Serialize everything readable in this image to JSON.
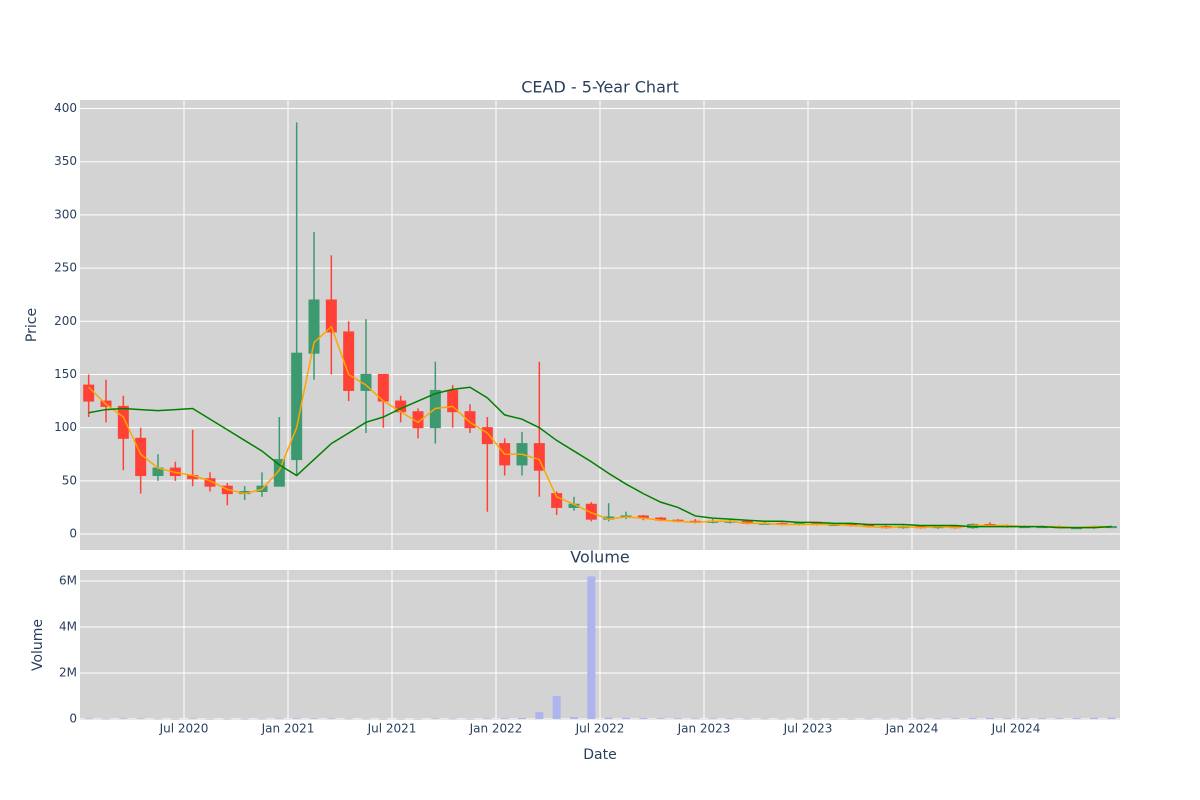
{
  "chart_data": [
    {
      "type": "candlestick",
      "title": "CEAD - 5-Year Chart",
      "y_label": "Price",
      "x": [
        "2020-01",
        "2020-02",
        "2020-03",
        "2020-04",
        "2020-05",
        "2020-06",
        "2020-07",
        "2020-08",
        "2020-09",
        "2020-10",
        "2020-11",
        "2020-12",
        "2021-01",
        "2021-02",
        "2021-03",
        "2021-04",
        "2021-05",
        "2021-06",
        "2021-07",
        "2021-08",
        "2021-09",
        "2021-10",
        "2021-11",
        "2021-12",
        "2022-01",
        "2022-02",
        "2022-03",
        "2022-04",
        "2022-05",
        "2022-06",
        "2022-07",
        "2022-08",
        "2022-09",
        "2022-10",
        "2022-11",
        "2022-12",
        "2023-01",
        "2023-02",
        "2023-03",
        "2023-04",
        "2023-05",
        "2023-06",
        "2023-07",
        "2023-08",
        "2023-09",
        "2023-10",
        "2023-11",
        "2023-12",
        "2024-01",
        "2024-02",
        "2024-03",
        "2024-04",
        "2024-05",
        "2024-06",
        "2024-07",
        "2024-08",
        "2024-09",
        "2024-10",
        "2024-11",
        "2024-12"
      ],
      "open": [
        140,
        125,
        120,
        90,
        55,
        62,
        55,
        52,
        45,
        38,
        40,
        45,
        70,
        170,
        220,
        190,
        135,
        150,
        125,
        115,
        100,
        135,
        115,
        100,
        85,
        65,
        85,
        38,
        25,
        28,
        14,
        16,
        17,
        15,
        13,
        12,
        11,
        12,
        12,
        10,
        10,
        9,
        10,
        9,
        9,
        8,
        7,
        6,
        7,
        6,
        7,
        6,
        9,
        8,
        7,
        7,
        7,
        6,
        6,
        7
      ],
      "high": [
        150,
        145,
        130,
        100,
        75,
        68,
        98,
        58,
        48,
        45,
        58,
        110,
        387,
        284,
        262,
        200,
        202,
        150,
        130,
        118,
        162,
        140,
        122,
        110,
        90,
        96,
        162,
        40,
        35,
        30,
        29,
        21,
        18,
        16,
        14,
        14,
        14,
        14,
        13,
        12,
        11,
        11,
        11,
        10,
        10,
        9,
        8,
        8,
        8,
        8,
        8,
        10,
        11,
        9,
        8,
        8,
        8,
        7,
        8,
        8
      ],
      "low": [
        110,
        105,
        60,
        38,
        50,
        50,
        45,
        40,
        27,
        32,
        35,
        45,
        55,
        145,
        150,
        125,
        95,
        100,
        105,
        90,
        85,
        100,
        95,
        21,
        55,
        55,
        35,
        18,
        22,
        12,
        12,
        14,
        13,
        12,
        11,
        10,
        10,
        10,
        9,
        9,
        8,
        8,
        8,
        8,
        7,
        6,
        5,
        5,
        5,
        5,
        5,
        5,
        7,
        6,
        6,
        6,
        6,
        5,
        5,
        6
      ],
      "close": [
        125,
        120,
        90,
        55,
        62,
        55,
        52,
        45,
        38,
        40,
        45,
        70,
        170,
        220,
        190,
        135,
        150,
        125,
        115,
        100,
        135,
        115,
        100,
        85,
        65,
        85,
        60,
        25,
        28,
        14,
        16,
        17,
        15,
        13,
        12,
        11,
        12,
        12,
        10,
        10,
        9,
        10,
        9,
        9,
        8,
        7,
        6,
        7,
        6,
        7,
        6,
        9,
        8,
        7,
        7,
        7,
        6,
        6,
        7,
        7
      ],
      "increasing_color": "#3d9970",
      "decreasing_color": "#ff4136",
      "series": [
        {
          "color": "orange",
          "values": [
            138,
            122,
            110,
            75,
            62,
            58,
            55,
            50,
            42,
            38,
            42,
            60,
            100,
            180,
            195,
            150,
            140,
            125,
            115,
            105,
            118,
            120,
            105,
            95,
            75,
            75,
            70,
            35,
            28,
            20,
            14,
            16,
            15,
            13,
            12,
            11,
            12,
            12,
            10,
            10,
            9,
            9,
            9,
            9,
            8,
            7,
            6,
            7,
            6,
            7,
            6,
            8,
            8,
            8,
            7,
            7,
            7,
            6,
            7,
            7
          ]
        },
        {
          "color": "green",
          "values": [
            114,
            117,
            118,
            117,
            116,
            117,
            118,
            108,
            98,
            88,
            78,
            65,
            55,
            70,
            85,
            95,
            105,
            110,
            118,
            125,
            132,
            136,
            138,
            128,
            112,
            108,
            100,
            88,
            78,
            68,
            57,
            47,
            38,
            30,
            25,
            17,
            15,
            14,
            13,
            12,
            12,
            11,
            11,
            10,
            10,
            9,
            9,
            9,
            8,
            8,
            8,
            7,
            7,
            7,
            7,
            7,
            6,
            6,
            6,
            7
          ]
        }
      ],
      "xlim": [
        "2020-01",
        "2025-01"
      ],
      "ylim": [
        -15,
        408
      ],
      "yticks": [
        0,
        50,
        100,
        150,
        200,
        250,
        300,
        350,
        400
      ],
      "grid": true
    },
    {
      "type": "bar",
      "title": "Volume",
      "y_label": "Volume",
      "x_label": "Date",
      "x": [
        "2020-01",
        "2020-02",
        "2020-03",
        "2020-04",
        "2020-05",
        "2020-06",
        "2020-07",
        "2020-08",
        "2020-09",
        "2020-10",
        "2020-11",
        "2020-12",
        "2021-01",
        "2021-02",
        "2021-03",
        "2021-04",
        "2021-05",
        "2021-06",
        "2021-07",
        "2021-08",
        "2021-09",
        "2021-10",
        "2021-11",
        "2021-12",
        "2022-01",
        "2022-02",
        "2022-03",
        "2022-04",
        "2022-05",
        "2022-06",
        "2022-07",
        "2022-08",
        "2022-09",
        "2022-10",
        "2022-11",
        "2022-12",
        "2023-01",
        "2023-02",
        "2023-03",
        "2023-04",
        "2023-05",
        "2023-06",
        "2023-07",
        "2023-08",
        "2023-09",
        "2023-10",
        "2023-11",
        "2023-12",
        "2024-01",
        "2024-02",
        "2024-03",
        "2024-04",
        "2024-05",
        "2024-06",
        "2024-07",
        "2024-08",
        "2024-09",
        "2024-10",
        "2024-11",
        "2024-12"
      ],
      "values": [
        20000,
        15000,
        25000,
        20000,
        15000,
        10000,
        20000,
        10000,
        10000,
        10000,
        15000,
        20000,
        30000,
        25000,
        20000,
        15000,
        15000,
        10000,
        10000,
        10000,
        20000,
        15000,
        10000,
        20000,
        30000,
        40000,
        300000,
        1000000,
        80000,
        6200000,
        60000,
        50000,
        40000,
        30000,
        30000,
        20000,
        20000,
        20000,
        15000,
        15000,
        15000,
        15000,
        10000,
        10000,
        10000,
        15000,
        15000,
        15000,
        20000,
        20000,
        30000,
        40000,
        40000,
        30000,
        30000,
        30000,
        30000,
        40000,
        50000,
        60000
      ],
      "color": "#aeb4ee",
      "xlim": [
        "2020-01",
        "2025-01"
      ],
      "ylim": [
        0,
        6480000
      ],
      "yticks": [
        0,
        {
          "value": 2000000,
          "label": "2M"
        },
        {
          "value": 4000000,
          "label": "4M"
        },
        {
          "value": 6000000,
          "label": "6M"
        }
      ],
      "xticks": [
        {
          "value": "2020-07",
          "label": "Jul 2020"
        },
        {
          "value": "2021-01",
          "label": "Jan 2021"
        },
        {
          "value": "2021-07",
          "label": "Jul 2021"
        },
        {
          "value": "2022-01",
          "label": "Jan 2022"
        },
        {
          "value": "2022-07",
          "label": "Jul 2022"
        },
        {
          "value": "2023-01",
          "label": "Jan 2023"
        },
        {
          "value": "2023-07",
          "label": "Jul 2023"
        },
        {
          "value": "2024-01",
          "label": "Jan 2024"
        },
        {
          "value": "2024-07",
          "label": "Jul 2024"
        }
      ],
      "grid": true
    }
  ]
}
